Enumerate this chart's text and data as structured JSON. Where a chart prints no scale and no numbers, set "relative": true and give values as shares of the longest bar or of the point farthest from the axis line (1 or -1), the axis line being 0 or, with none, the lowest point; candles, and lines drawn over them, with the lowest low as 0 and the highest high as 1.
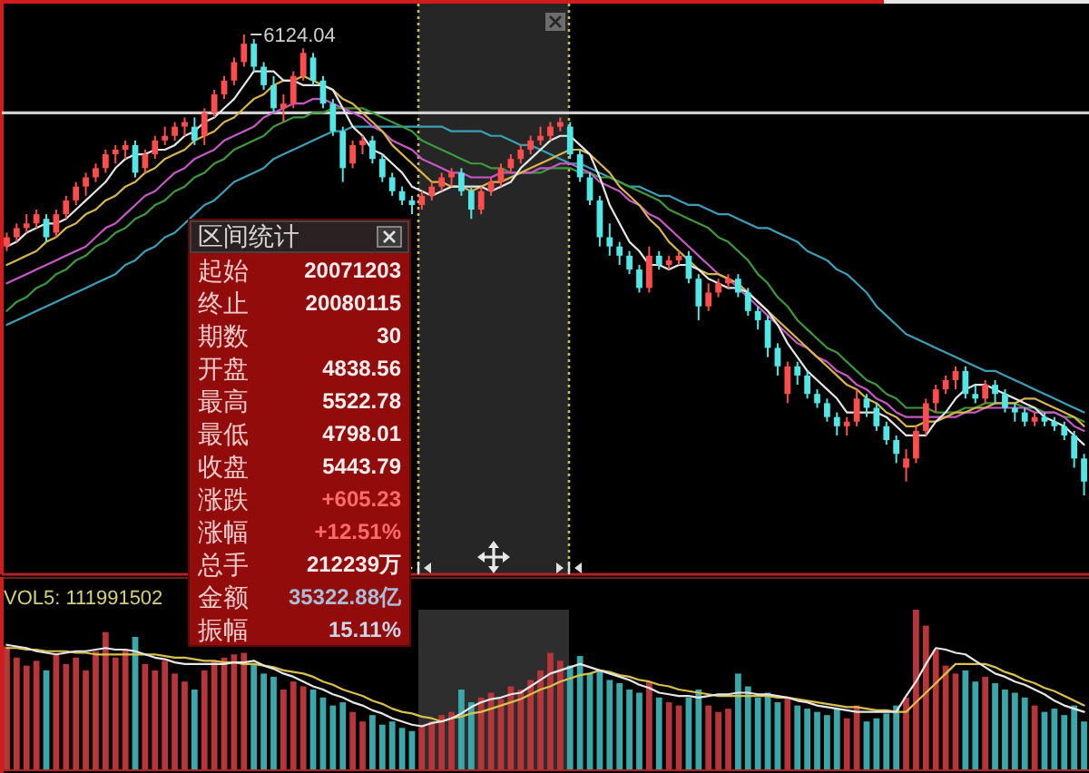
{
  "chart_data": [
    {
      "type": "candlestick",
      "relative": true,
      "categories": [
        null,
        null,
        null,
        null,
        null,
        null,
        null,
        null,
        null,
        null,
        null,
        null,
        null,
        null,
        null,
        null,
        null,
        null,
        null,
        null,
        null,
        null,
        null,
        null,
        null,
        null,
        null,
        null,
        null,
        null,
        null,
        null,
        null,
        null,
        null,
        null,
        null,
        null,
        null,
        null,
        null,
        null,
        null,
        null,
        null,
        null,
        null,
        null,
        null,
        null,
        null,
        null,
        null,
        null,
        null,
        null,
        null,
        null,
        null,
        null,
        null,
        null,
        null,
        null,
        null,
        null,
        null,
        null,
        null,
        null,
        null,
        null,
        null,
        null,
        null,
        null,
        null,
        null,
        null,
        null,
        null,
        null,
        null,
        null,
        null,
        null,
        null,
        null,
        null,
        null,
        null,
        null,
        null,
        null,
        null,
        null,
        null,
        null,
        null,
        null,
        null,
        null,
        null,
        null,
        null,
        null,
        null,
        null,
        null,
        null
      ],
      "ohlc": [
        [
          0.54,
          0.57,
          0.53,
          0.56
        ],
        [
          0.56,
          0.59,
          0.55,
          0.58
        ],
        [
          0.58,
          0.61,
          0.57,
          0.59
        ],
        [
          0.59,
          0.62,
          0.58,
          0.61
        ],
        [
          0.6,
          0.61,
          0.55,
          0.56
        ],
        [
          0.57,
          0.62,
          0.56,
          0.61
        ],
        [
          0.61,
          0.65,
          0.6,
          0.64
        ],
        [
          0.64,
          0.68,
          0.63,
          0.67
        ],
        [
          0.67,
          0.7,
          0.65,
          0.69
        ],
        [
          0.69,
          0.72,
          0.68,
          0.71
        ],
        [
          0.71,
          0.75,
          0.7,
          0.74
        ],
        [
          0.74,
          0.76,
          0.72,
          0.75
        ],
        [
          0.75,
          0.77,
          0.73,
          0.76
        ],
        [
          0.76,
          0.77,
          0.69,
          0.7
        ],
        [
          0.71,
          0.75,
          0.7,
          0.74
        ],
        [
          0.74,
          0.78,
          0.73,
          0.77
        ],
        [
          0.77,
          0.8,
          0.76,
          0.78
        ],
        [
          0.78,
          0.81,
          0.77,
          0.8
        ],
        [
          0.8,
          0.82,
          0.78,
          0.81
        ],
        [
          0.8,
          0.82,
          0.76,
          0.77
        ],
        [
          0.78,
          0.84,
          0.76,
          0.83
        ],
        [
          0.83,
          0.88,
          0.82,
          0.87
        ],
        [
          0.87,
          0.91,
          0.86,
          0.9
        ],
        [
          0.9,
          0.95,
          0.89,
          0.94
        ],
        [
          0.94,
          1.0,
          0.93,
          0.98
        ],
        [
          0.98,
          0.99,
          0.92,
          0.93
        ],
        [
          0.93,
          0.94,
          0.88,
          0.89
        ],
        [
          0.89,
          0.91,
          0.83,
          0.84
        ],
        [
          0.84,
          0.87,
          0.81,
          0.85
        ],
        [
          0.85,
          0.92,
          0.84,
          0.91
        ],
        [
          0.91,
          0.97,
          0.9,
          0.96
        ],
        [
          0.95,
          0.96,
          0.89,
          0.9
        ],
        [
          0.9,
          0.91,
          0.84,
          0.85
        ],
        [
          0.85,
          0.86,
          0.78,
          0.79
        ],
        [
          0.79,
          0.8,
          0.68,
          0.71
        ],
        [
          0.72,
          0.77,
          0.71,
          0.76
        ],
        [
          0.76,
          0.78,
          0.74,
          0.77
        ],
        [
          0.77,
          0.78,
          0.72,
          0.73
        ],
        [
          0.73,
          0.74,
          0.68,
          0.69
        ],
        [
          0.69,
          0.7,
          0.65,
          0.66
        ],
        [
          0.66,
          0.67,
          0.63,
          0.64
        ],
        [
          0.64,
          0.65,
          0.61,
          0.63
        ],
        [
          0.63,
          0.66,
          0.62,
          0.65
        ],
        [
          0.65,
          0.68,
          0.64,
          0.67
        ],
        [
          0.67,
          0.7,
          0.66,
          0.69
        ],
        [
          0.69,
          0.71,
          0.67,
          0.7
        ],
        [
          0.7,
          0.71,
          0.65,
          0.66
        ],
        [
          0.66,
          0.67,
          0.6,
          0.62
        ],
        [
          0.62,
          0.67,
          0.61,
          0.66
        ],
        [
          0.66,
          0.69,
          0.65,
          0.68
        ],
        [
          0.68,
          0.72,
          0.67,
          0.71
        ],
        [
          0.71,
          0.74,
          0.7,
          0.73
        ],
        [
          0.73,
          0.76,
          0.72,
          0.75
        ],
        [
          0.75,
          0.78,
          0.74,
          0.77
        ],
        [
          0.77,
          0.8,
          0.76,
          0.78
        ],
        [
          0.78,
          0.81,
          0.77,
          0.8
        ],
        [
          0.8,
          0.82,
          0.79,
          0.81
        ],
        [
          0.8,
          0.81,
          0.73,
          0.74
        ],
        [
          0.74,
          0.75,
          0.68,
          0.69
        ],
        [
          0.69,
          0.7,
          0.63,
          0.64
        ],
        [
          0.64,
          0.65,
          0.54,
          0.56
        ],
        [
          0.56,
          0.59,
          0.52,
          0.54
        ],
        [
          0.54,
          0.55,
          0.5,
          0.52
        ],
        [
          0.52,
          0.53,
          0.48,
          0.49
        ],
        [
          0.49,
          0.5,
          0.44,
          0.45
        ],
        [
          0.45,
          0.54,
          0.44,
          0.52
        ],
        [
          0.52,
          0.53,
          0.49,
          0.5
        ],
        [
          0.5,
          0.52,
          0.49,
          0.51
        ],
        [
          0.51,
          0.53,
          0.5,
          0.52
        ],
        [
          0.52,
          0.53,
          0.46,
          0.47
        ],
        [
          0.47,
          0.48,
          0.38,
          0.41
        ],
        [
          0.41,
          0.46,
          0.4,
          0.44
        ],
        [
          0.44,
          0.47,
          0.43,
          0.46
        ],
        [
          0.46,
          0.48,
          0.45,
          0.47
        ],
        [
          0.47,
          0.48,
          0.43,
          0.44
        ],
        [
          0.44,
          0.45,
          0.39,
          0.4
        ],
        [
          0.4,
          0.41,
          0.36,
          0.38
        ],
        [
          0.38,
          0.39,
          0.3,
          0.32
        ],
        [
          0.32,
          0.33,
          0.26,
          0.28
        ],
        [
          0.22,
          0.29,
          0.2,
          0.28
        ],
        [
          0.28,
          0.29,
          0.24,
          0.26
        ],
        [
          0.26,
          0.27,
          0.21,
          0.22
        ],
        [
          0.22,
          0.23,
          0.19,
          0.2
        ],
        [
          0.2,
          0.21,
          0.16,
          0.17
        ],
        [
          0.17,
          0.18,
          0.13,
          0.15
        ],
        [
          0.15,
          0.17,
          0.13,
          0.16
        ],
        [
          0.16,
          0.23,
          0.15,
          0.21
        ],
        [
          0.21,
          0.22,
          0.17,
          0.19
        ],
        [
          0.19,
          0.2,
          0.14,
          0.15
        ],
        [
          0.15,
          0.16,
          0.11,
          0.12
        ],
        [
          0.12,
          0.13,
          0.07,
          0.09
        ],
        [
          0.06,
          0.1,
          0.03,
          0.08
        ],
        [
          0.08,
          0.15,
          0.07,
          0.14
        ],
        [
          0.14,
          0.21,
          0.13,
          0.2
        ],
        [
          0.2,
          0.24,
          0.18,
          0.23
        ],
        [
          0.23,
          0.26,
          0.22,
          0.25
        ],
        [
          0.25,
          0.28,
          0.23,
          0.27
        ],
        [
          0.27,
          0.28,
          0.21,
          0.22
        ],
        [
          0.22,
          0.24,
          0.2,
          0.21
        ],
        [
          0.21,
          0.25,
          0.2,
          0.24
        ],
        [
          0.24,
          0.25,
          0.2,
          0.22
        ],
        [
          0.22,
          0.23,
          0.18,
          0.19
        ],
        [
          0.19,
          0.2,
          0.16,
          0.18
        ],
        [
          0.18,
          0.19,
          0.15,
          0.16
        ],
        [
          0.16,
          0.18,
          0.15,
          0.17
        ],
        [
          0.17,
          0.18,
          0.15,
          0.16
        ],
        [
          0.16,
          0.17,
          0.14,
          0.15
        ],
        [
          0.15,
          0.16,
          0.12,
          0.13
        ],
        [
          0.13,
          0.14,
          0.06,
          0.08
        ],
        [
          0.08,
          0.09,
          0.0,
          0.03
        ]
      ],
      "colors": [
        "#ff4d4d",
        "#ff4d4d",
        "#ff4d4d",
        "#ff4d4d",
        "#52e6e6",
        "#ff4d4d",
        "#ff4d4d",
        "#ff4d4d",
        "#ff4d4d",
        "#ff4d4d",
        "#ff4d4d",
        "#ff4d4d",
        "#ff4d4d",
        "#52e6e6",
        "#ff4d4d",
        "#ff4d4d",
        "#ff4d4d",
        "#ff4d4d",
        "#ff4d4d",
        "#52e6e6",
        "#ff4d4d",
        "#ff4d4d",
        "#ff4d4d",
        "#ff4d4d",
        "#ff4d4d",
        "#52e6e6",
        "#52e6e6",
        "#52e6e6",
        "#ff4d4d",
        "#ff4d4d",
        "#ff4d4d",
        "#52e6e6",
        "#52e6e6",
        "#52e6e6",
        "#52e6e6",
        "#ff4d4d",
        "#ff4d4d",
        "#52e6e6",
        "#52e6e6",
        "#52e6e6",
        "#52e6e6",
        "#52e6e6",
        "#ff4d4d",
        "#ff4d4d",
        "#ff4d4d",
        "#ff4d4d",
        "#52e6e6",
        "#52e6e6",
        "#ff4d4d",
        "#ff4d4d",
        "#ff4d4d",
        "#ff4d4d",
        "#ff4d4d",
        "#ff4d4d",
        "#ff4d4d",
        "#ff4d4d",
        "#ff4d4d",
        "#52e6e6",
        "#52e6e6",
        "#52e6e6",
        "#52e6e6",
        "#52e6e6",
        "#52e6e6",
        "#52e6e6",
        "#52e6e6",
        "#ff4d4d",
        "#52e6e6",
        "#ff4d4d",
        "#ff4d4d",
        "#52e6e6",
        "#52e6e6",
        "#ff4d4d",
        "#ff4d4d",
        "#ff4d4d",
        "#52e6e6",
        "#52e6e6",
        "#52e6e6",
        "#52e6e6",
        "#52e6e6",
        "#ff4d4d",
        "#52e6e6",
        "#52e6e6",
        "#52e6e6",
        "#52e6e6",
        "#52e6e6",
        "#ff4d4d",
        "#ff4d4d",
        "#52e6e6",
        "#52e6e6",
        "#52e6e6",
        "#52e6e6",
        "#ff4d4d",
        "#ff4d4d",
        "#ff4d4d",
        "#ff4d4d",
        "#ff4d4d",
        "#ff4d4d",
        "#52e6e6",
        "#52e6e6",
        "#ff4d4d",
        "#52e6e6",
        "#52e6e6",
        "#52e6e6",
        "#52e6e6",
        "#ff4d4d",
        "#52e6e6",
        "#52e6e6",
        "#52e6e6",
        "#52e6e6",
        "#52e6e6"
      ],
      "series": [
        {
          "type": "line",
          "color": "#3aa0b8",
          "values": [
            0.37,
            0.38,
            0.39,
            0.4,
            0.41,
            0.42,
            0.43,
            0.44,
            0.45,
            0.46,
            0.47,
            0.48,
            0.5,
            0.51,
            0.53,
            0.54,
            0.56,
            0.57,
            0.59,
            0.61,
            0.63,
            0.64,
            0.66,
            0.68,
            0.69,
            0.7,
            0.71,
            0.73,
            0.74,
            0.75,
            0.76,
            0.77,
            0.78,
            0.79,
            0.79,
            0.8,
            0.8,
            0.8,
            0.8,
            0.8,
            0.8,
            0.8,
            0.8,
            0.8,
            0.8,
            0.79,
            0.79,
            0.79,
            0.79,
            0.78,
            0.78,
            0.77,
            0.76,
            0.76,
            0.75,
            0.74,
            0.73,
            0.72,
            0.72,
            0.71,
            0.7,
            0.69,
            0.68,
            0.67,
            0.67,
            0.66,
            0.65,
            0.65,
            0.64,
            0.63,
            0.63,
            0.62,
            0.61,
            0.61,
            0.6,
            0.59,
            0.58,
            0.58,
            0.57,
            0.56,
            0.55,
            0.53,
            0.52,
            0.51,
            0.49,
            0.48,
            0.46,
            0.44,
            0.41,
            0.39,
            0.37,
            0.35,
            0.34,
            0.33,
            0.32,
            0.31,
            0.3,
            0.29,
            0.28,
            0.27,
            0.27,
            0.26,
            0.25,
            0.24,
            0.23,
            0.22,
            0.21,
            0.2,
            0.19,
            0.18
          ]
        },
        {
          "type": "line",
          "color": "#3c9a3c",
          "values": [
            0.4,
            0.42,
            0.43,
            0.45,
            0.46,
            0.48,
            0.49,
            0.51,
            0.52,
            0.54,
            0.55,
            0.57,
            0.58,
            0.6,
            0.61,
            0.63,
            0.64,
            0.66,
            0.67,
            0.69,
            0.7,
            0.72,
            0.73,
            0.75,
            0.76,
            0.77,
            0.78,
            0.8,
            0.81,
            0.82,
            0.82,
            0.83,
            0.83,
            0.84,
            0.84,
            0.84,
            0.84,
            0.83,
            0.82,
            0.81,
            0.8,
            0.79,
            0.77,
            0.76,
            0.75,
            0.74,
            0.73,
            0.72,
            0.72,
            0.71,
            0.71,
            0.7,
            0.7,
            0.7,
            0.7,
            0.71,
            0.71,
            0.71,
            0.7,
            0.7,
            0.69,
            0.69,
            0.68,
            0.67,
            0.66,
            0.65,
            0.64,
            0.62,
            0.61,
            0.6,
            0.59,
            0.58,
            0.56,
            0.55,
            0.53,
            0.51,
            0.48,
            0.46,
            0.43,
            0.41,
            0.38,
            0.36,
            0.34,
            0.32,
            0.31,
            0.29,
            0.27,
            0.25,
            0.24,
            0.22,
            0.21,
            0.19,
            0.19,
            0.19,
            0.18,
            0.18,
            0.18,
            0.19,
            0.19,
            0.2,
            0.2,
            0.2,
            0.2,
            0.19,
            0.19,
            0.18,
            0.18,
            0.17,
            0.17,
            0.16
          ]
        },
        {
          "type": "line",
          "color": "#c858c8",
          "values": [
            0.46,
            0.47,
            0.48,
            0.49,
            0.5,
            0.51,
            0.52,
            0.53,
            0.54,
            0.56,
            0.58,
            0.59,
            0.61,
            0.63,
            0.65,
            0.66,
            0.68,
            0.7,
            0.71,
            0.73,
            0.74,
            0.75,
            0.77,
            0.78,
            0.79,
            0.8,
            0.82,
            0.83,
            0.84,
            0.85,
            0.85,
            0.86,
            0.86,
            0.85,
            0.84,
            0.83,
            0.82,
            0.8,
            0.79,
            0.77,
            0.76,
            0.75,
            0.73,
            0.72,
            0.71,
            0.7,
            0.7,
            0.69,
            0.69,
            0.69,
            0.7,
            0.7,
            0.7,
            0.7,
            0.71,
            0.71,
            0.72,
            0.72,
            0.71,
            0.7,
            0.68,
            0.67,
            0.66,
            0.64,
            0.63,
            0.61,
            0.6,
            0.58,
            0.56,
            0.54,
            0.52,
            0.5,
            0.48,
            0.47,
            0.45,
            0.43,
            0.41,
            0.39,
            0.37,
            0.35,
            0.33,
            0.32,
            0.3,
            0.29,
            0.27,
            0.26,
            0.24,
            0.23,
            0.21,
            0.2,
            0.18,
            0.17,
            0.17,
            0.17,
            0.17,
            0.17,
            0.17,
            0.18,
            0.18,
            0.19,
            0.19,
            0.19,
            0.19,
            0.19,
            0.18,
            0.18,
            0.18,
            0.17,
            0.15,
            0.14
          ]
        },
        {
          "type": "line",
          "color": "#d9b64a",
          "values": [
            0.5,
            0.51,
            0.52,
            0.53,
            0.55,
            0.56,
            0.58,
            0.59,
            0.61,
            0.62,
            0.64,
            0.65,
            0.67,
            0.68,
            0.7,
            0.71,
            0.73,
            0.74,
            0.75,
            0.77,
            0.78,
            0.79,
            0.81,
            0.82,
            0.84,
            0.86,
            0.87,
            0.89,
            0.9,
            0.9,
            0.91,
            0.9,
            0.89,
            0.88,
            0.86,
            0.85,
            0.83,
            0.81,
            0.79,
            0.76,
            0.74,
            0.72,
            0.7,
            0.68,
            0.68,
            0.67,
            0.67,
            0.66,
            0.67,
            0.68,
            0.68,
            0.69,
            0.7,
            0.71,
            0.72,
            0.73,
            0.74,
            0.75,
            0.75,
            0.74,
            0.72,
            0.7,
            0.67,
            0.65,
            0.63,
            0.6,
            0.58,
            0.55,
            0.53,
            0.51,
            0.49,
            0.48,
            0.48,
            0.47,
            0.46,
            0.44,
            0.42,
            0.4,
            0.38,
            0.36,
            0.34,
            0.32,
            0.3,
            0.28,
            0.26,
            0.24,
            0.23,
            0.21,
            0.2,
            0.18,
            0.17,
            0.15,
            0.15,
            0.16,
            0.16,
            0.17,
            0.18,
            0.18,
            0.19,
            0.19,
            0.2,
            0.2,
            0.2,
            0.21,
            0.21,
            0.2,
            0.19,
            0.18,
            0.17,
            0.15
          ]
        },
        {
          "type": "line",
          "color": "#e6e6e6",
          "values": [
            0.54,
            0.55,
            0.57,
            0.58,
            0.59,
            0.59,
            0.6,
            0.62,
            0.64,
            0.66,
            0.68,
            0.71,
            0.73,
            0.74,
            0.74,
            0.75,
            0.75,
            0.76,
            0.78,
            0.79,
            0.81,
            0.82,
            0.84,
            0.86,
            0.89,
            0.92,
            0.92,
            0.92,
            0.9,
            0.9,
            0.89,
            0.89,
            0.89,
            0.88,
            0.84,
            0.8,
            0.78,
            0.75,
            0.74,
            0.72,
            0.7,
            0.67,
            0.66,
            0.65,
            0.66,
            0.67,
            0.67,
            0.67,
            0.67,
            0.66,
            0.67,
            0.68,
            0.71,
            0.73,
            0.75,
            0.77,
            0.78,
            0.78,
            0.76,
            0.74,
            0.69,
            0.63,
            0.59,
            0.55,
            0.53,
            0.5,
            0.5,
            0.49,
            0.5,
            0.5,
            0.49,
            0.47,
            0.46,
            0.45,
            0.45,
            0.44,
            0.42,
            0.4,
            0.37,
            0.33,
            0.3,
            0.27,
            0.25,
            0.23,
            0.21,
            0.18,
            0.18,
            0.18,
            0.18,
            0.17,
            0.15,
            0.13,
            0.13,
            0.13,
            0.16,
            0.18,
            0.21,
            0.23,
            0.24,
            0.24,
            0.23,
            0.22,
            0.21,
            0.2,
            0.19,
            0.17,
            0.16,
            0.15,
            0.13,
            0.11
          ]
        }
      ],
      "annotations": [
        "6124.04"
      ],
      "ref_lines": [
        {
          "axis": "y",
          "value": 0.83,
          "color": "#cfcfcf"
        }
      ]
    },
    {
      "type": "bar",
      "relative": true,
      "categories": [
        null,
        null,
        null,
        null,
        null,
        null,
        null,
        null,
        null,
        null,
        null,
        null,
        null,
        null,
        null,
        null,
        null,
        null,
        null,
        null,
        null,
        null,
        null,
        null,
        null,
        null,
        null,
        null,
        null,
        null,
        null,
        null,
        null,
        null,
        null,
        null,
        null,
        null,
        null,
        null,
        null,
        null,
        null,
        null,
        null,
        null,
        null,
        null,
        null,
        null,
        null,
        null,
        null,
        null,
        null,
        null,
        null,
        null,
        null,
        null,
        null,
        null,
        null,
        null,
        null,
        null,
        null,
        null,
        null,
        null,
        null,
        null,
        null,
        null,
        null,
        null,
        null,
        null,
        null,
        null,
        null,
        null,
        null,
        null,
        null,
        null,
        null,
        null,
        null,
        null,
        null,
        null,
        null,
        null,
        null,
        null,
        null,
        null,
        null,
        null,
        null,
        null,
        null,
        null,
        null,
        null,
        null,
        null,
        null,
        null
      ],
      "series": [
        {
          "type": "bar",
          "values": [
            0.77,
            0.7,
            0.65,
            0.68,
            0.62,
            0.72,
            0.66,
            0.7,
            0.62,
            0.74,
            0.86,
            0.7,
            0.75,
            0.83,
            0.66,
            0.62,
            0.68,
            0.6,
            0.55,
            0.5,
            0.62,
            0.68,
            0.7,
            0.72,
            0.73,
            0.66,
            0.6,
            0.58,
            0.5,
            0.55,
            0.52,
            0.5,
            0.45,
            0.4,
            0.42,
            0.36,
            0.3,
            0.34,
            0.28,
            0.3,
            0.26,
            0.24,
            0.28,
            0.3,
            0.34,
            0.36,
            0.5,
            0.42,
            0.45,
            0.48,
            0.44,
            0.52,
            0.5,
            0.56,
            0.62,
            0.73,
            0.68,
            0.65,
            0.71,
            0.6,
            0.62,
            0.56,
            0.54,
            0.5,
            0.48,
            0.55,
            0.45,
            0.42,
            0.4,
            0.45,
            0.5,
            0.4,
            0.36,
            0.38,
            0.6,
            0.52,
            0.45,
            0.48,
            0.42,
            0.45,
            0.4,
            0.38,
            0.36,
            0.34,
            0.38,
            0.32,
            0.4,
            0.3,
            0.32,
            0.35,
            0.4,
            0.45,
            1.0,
            0.9,
            0.75,
            0.65,
            0.6,
            0.62,
            0.55,
            0.58,
            0.54,
            0.5,
            0.48,
            0.45,
            0.4,
            0.36,
            0.38,
            0.34,
            0.4,
            0.3
          ],
          "colors": [
            "#b8353a",
            "#b8353a",
            "#b8353a",
            "#b8353a",
            "#3aa8aa",
            "#b8353a",
            "#b8353a",
            "#b8353a",
            "#b8353a",
            "#b8353a",
            "#b8353a",
            "#b8353a",
            "#b8353a",
            "#3aa8aa",
            "#b8353a",
            "#b8353a",
            "#b8353a",
            "#b8353a",
            "#b8353a",
            "#3aa8aa",
            "#b8353a",
            "#b8353a",
            "#b8353a",
            "#b8353a",
            "#b8353a",
            "#3aa8aa",
            "#3aa8aa",
            "#3aa8aa",
            "#b8353a",
            "#b8353a",
            "#b8353a",
            "#3aa8aa",
            "#3aa8aa",
            "#3aa8aa",
            "#3aa8aa",
            "#b8353a",
            "#b8353a",
            "#3aa8aa",
            "#3aa8aa",
            "#3aa8aa",
            "#3aa8aa",
            "#3aa8aa",
            "#b8353a",
            "#b8353a",
            "#b8353a",
            "#b8353a",
            "#3aa8aa",
            "#3aa8aa",
            "#b8353a",
            "#b8353a",
            "#b8353a",
            "#b8353a",
            "#b8353a",
            "#b8353a",
            "#b8353a",
            "#b8353a",
            "#b8353a",
            "#3aa8aa",
            "#3aa8aa",
            "#3aa8aa",
            "#3aa8aa",
            "#3aa8aa",
            "#3aa8aa",
            "#3aa8aa",
            "#3aa8aa",
            "#b8353a",
            "#3aa8aa",
            "#b8353a",
            "#b8353a",
            "#3aa8aa",
            "#3aa8aa",
            "#b8353a",
            "#b8353a",
            "#b8353a",
            "#3aa8aa",
            "#3aa8aa",
            "#3aa8aa",
            "#3aa8aa",
            "#3aa8aa",
            "#b8353a",
            "#3aa8aa",
            "#3aa8aa",
            "#3aa8aa",
            "#3aa8aa",
            "#3aa8aa",
            "#b8353a",
            "#b8353a",
            "#3aa8aa",
            "#3aa8aa",
            "#3aa8aa",
            "#3aa8aa",
            "#b8353a",
            "#b8353a",
            "#b8353a",
            "#b8353a",
            "#b8353a",
            "#b8353a",
            "#3aa8aa",
            "#3aa8aa",
            "#b8353a",
            "#3aa8aa",
            "#3aa8aa",
            "#3aa8aa",
            "#3aa8aa",
            "#b8353a",
            "#3aa8aa",
            "#3aa8aa",
            "#3aa8aa",
            "#3aa8aa",
            "#3aa8aa"
          ]
        },
        {
          "type": "line",
          "color": "#d9c24a",
          "values": [
            0.76,
            0.76,
            0.75,
            0.75,
            0.74,
            0.74,
            0.74,
            0.73,
            0.73,
            0.72,
            0.72,
            0.72,
            0.72,
            0.72,
            0.72,
            0.72,
            0.71,
            0.7,
            0.7,
            0.69,
            0.68,
            0.68,
            0.67,
            0.67,
            0.66,
            0.66,
            0.65,
            0.64,
            0.62,
            0.61,
            0.6,
            0.58,
            0.55,
            0.53,
            0.5,
            0.48,
            0.46,
            0.43,
            0.41,
            0.38,
            0.36,
            0.35,
            0.33,
            0.32,
            0.3,
            0.32,
            0.33,
            0.35,
            0.36,
            0.38,
            0.4,
            0.42,
            0.44,
            0.47,
            0.5,
            0.52,
            0.55,
            0.57,
            0.59,
            0.6,
            0.62,
            0.61,
            0.59,
            0.58,
            0.56,
            0.55,
            0.53,
            0.52,
            0.5,
            0.49,
            0.48,
            0.47,
            0.46,
            0.46,
            0.46,
            0.46,
            0.46,
            0.46,
            0.45,
            0.45,
            0.44,
            0.43,
            0.42,
            0.41,
            0.4,
            0.39,
            0.39,
            0.38,
            0.37,
            0.37,
            0.36,
            0.36,
            0.42,
            0.48,
            0.54,
            0.6,
            0.66,
            0.66,
            0.66,
            0.66,
            0.64,
            0.61,
            0.59,
            0.56,
            0.54,
            0.51,
            0.49,
            0.46,
            0.43,
            0.4
          ]
        },
        {
          "type": "line",
          "color": "#e6e6e6",
          "values": [
            0.78,
            0.77,
            0.76,
            0.74,
            0.73,
            0.72,
            0.73,
            0.74,
            0.74,
            0.75,
            0.76,
            0.75,
            0.75,
            0.74,
            0.72,
            0.7,
            0.69,
            0.67,
            0.66,
            0.66,
            0.66,
            0.66,
            0.66,
            0.67,
            0.67,
            0.68,
            0.65,
            0.63,
            0.6,
            0.58,
            0.55,
            0.52,
            0.5,
            0.47,
            0.45,
            0.42,
            0.4,
            0.37,
            0.35,
            0.32,
            0.3,
            0.28,
            0.27,
            0.29,
            0.3,
            0.32,
            0.35,
            0.39,
            0.42,
            0.44,
            0.45,
            0.47,
            0.48,
            0.52,
            0.56,
            0.6,
            0.62,
            0.64,
            0.66,
            0.64,
            0.62,
            0.6,
            0.58,
            0.56,
            0.53,
            0.51,
            0.48,
            0.47,
            0.46,
            0.46,
            0.45,
            0.46,
            0.47,
            0.47,
            0.48,
            0.48,
            0.47,
            0.47,
            0.46,
            0.45,
            0.43,
            0.42,
            0.4,
            0.39,
            0.38,
            0.37,
            0.36,
            0.36,
            0.36,
            0.36,
            0.36,
            0.46,
            0.55,
            0.66,
            0.76,
            0.75,
            0.73,
            0.72,
            0.68,
            0.64,
            0.6,
            0.58,
            0.55,
            0.53,
            0.5,
            0.47,
            0.43,
            0.4,
            0.38,
            0.36
          ]
        }
      ],
      "annotations": [
        "VOL5: 111991502"
      ]
    },
    {
      "type": "other",
      "title": "区间统计",
      "annotations": [
        "起始",
        "20071203",
        "终止",
        "20080115",
        "期数",
        "30",
        "开盘",
        "4838.56",
        "最高",
        "5522.78",
        "最低",
        "4798.01",
        "收盘",
        "5443.79",
        "涨跌",
        "+605.23",
        "涨幅",
        "+12.51%",
        "总手",
        "212239万",
        "金额",
        "35322.88亿",
        "振幅",
        "15.11%"
      ],
      "colors": [
        "#efcaca",
        "#f5eded",
        "#efcaca",
        "#f5eded",
        "#efcaca",
        "#f5eded",
        "#efcaca",
        "#f5eded",
        "#efcaca",
        "#f5eded",
        "#efcaca",
        "#f5eded",
        "#efcaca",
        "#f5eded",
        "#efcaca",
        "#ff6b6b",
        "#efcaca",
        "#ff6b6b",
        "#efcaca",
        "#f5eded",
        "#efcaca",
        "#a9bdd6",
        "#efcaca",
        "#c9d6e6"
      ]
    }
  ]
}
